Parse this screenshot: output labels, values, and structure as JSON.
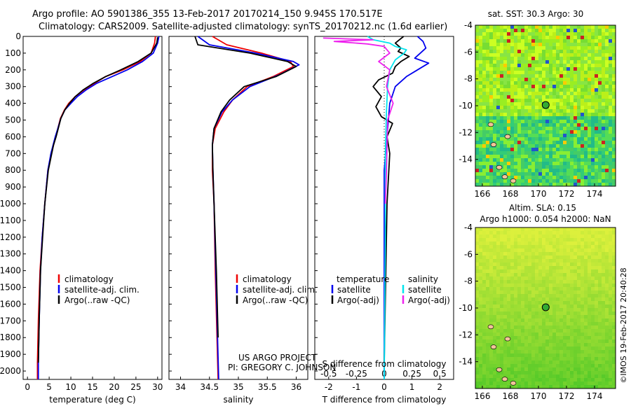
{
  "header": {
    "line1": "Argo profile: AO 5901386_355 13-Feb-2017 20170214_150 9.945S 170.517E",
    "line2": "Climatology: CARS2009. Satellite-adjusted climatology: synTS_20170212.nc (1.6d earlier)"
  },
  "colors": {
    "climatology": "#ee0000",
    "satellite": "#0000ee",
    "argo": "#000000",
    "sal_sat": "#00e5ee",
    "sal_argo": "#ee22ee"
  },
  "chart_data": [
    {
      "type": "line",
      "id": "temperature",
      "xlabel": "temperature (deg C)",
      "ylabel": "",
      "xlim": [
        -1,
        31
      ],
      "ylim": [
        2050,
        0
      ],
      "xticks": [
        "0",
        "5",
        "10",
        "15",
        "20",
        "25",
        "30"
      ],
      "xtick_values": [
        0,
        5,
        10,
        15,
        20,
        25,
        30
      ],
      "yticks": [
        "0",
        "100",
        "200",
        "300",
        "400",
        "500",
        "600",
        "700",
        "800",
        "900",
        "1000",
        "1100",
        "1200",
        "1300",
        "1400",
        "1500",
        "1600",
        "1700",
        "1800",
        "1900",
        "2000"
      ],
      "ytick_values": [
        0,
        100,
        200,
        300,
        400,
        500,
        600,
        700,
        800,
        900,
        1000,
        1100,
        1200,
        1300,
        1400,
        1500,
        1600,
        1700,
        1800,
        1900,
        2000
      ],
      "legend": [
        "climatology",
        "satellite-adj. clim.",
        "Argo(..raw -QC)"
      ],
      "legend_position": "bottom-right",
      "series": [
        {
          "name": "climatology",
          "color": "#ee0000",
          "x": [
            29.5,
            29.3,
            28.5,
            26,
            22,
            18,
            15.5,
            13,
            11,
            9.5,
            8.5,
            7.6,
            7,
            6.5,
            6,
            5.5,
            4.7,
            4,
            3.4,
            2.9,
            2.5,
            2.3,
            2.3
          ],
          "y": [
            0,
            40,
            100,
            150,
            200,
            240,
            280,
            320,
            360,
            400,
            440,
            490,
            550,
            600,
            650,
            700,
            800,
            1000,
            1200,
            1400,
            1700,
            1950,
            2050
          ]
        },
        {
          "name": "satellite-adj. clim.",
          "color": "#0000ee",
          "x": [
            30.3,
            30,
            29,
            26.5,
            23,
            19.5,
            16,
            13.5,
            11.5,
            10,
            8.6,
            7.7,
            7,
            6.4,
            5.9,
            5.4,
            4.7,
            4,
            3.4,
            3,
            2.7,
            2.5,
            2.5
          ],
          "y": [
            0,
            40,
            100,
            150,
            200,
            240,
            280,
            320,
            360,
            400,
            440,
            490,
            550,
            600,
            650,
            700,
            800,
            1000,
            1200,
            1400,
            1700,
            1950,
            2050
          ]
        },
        {
          "name": "Argo(..raw -QC)",
          "color": "#000000",
          "x": [
            30,
            29.8,
            28.5,
            25.5,
            21.5,
            18,
            15.2,
            12.8,
            11,
            9.7,
            8.6,
            7.7,
            7.1,
            6.6,
            6,
            5.6,
            4.8,
            4,
            3.5,
            3,
            2.7,
            2.5
          ],
          "y": [
            5,
            40,
            100,
            150,
            200,
            240,
            280,
            320,
            360,
            400,
            440,
            490,
            550,
            600,
            650,
            700,
            800,
            1000,
            1200,
            1400,
            1700,
            1950
          ]
        }
      ]
    },
    {
      "type": "line",
      "id": "salinity",
      "xlabel": "salinity",
      "xlim": [
        33.8,
        36.2
      ],
      "ylim": [
        2050,
        0
      ],
      "xticks": [
        "34",
        "34.5",
        "35",
        "35.5",
        "36"
      ],
      "xtick_values": [
        34,
        34.5,
        35,
        35.5,
        36
      ],
      "legend": [
        "climatology",
        "satellite-adj. clim.",
        "Argo(..raw -QC)"
      ],
      "legend_position": "bottom-right",
      "series": [
        {
          "name": "climatology",
          "color": "#ee0000",
          "x": [
            34.55,
            34.8,
            35.4,
            35.9,
            35.95,
            35.6,
            35.15,
            34.9,
            34.75,
            34.6,
            34.55,
            34.55,
            34.58,
            34.6,
            34.63,
            34.65
          ],
          "y": [
            0,
            50,
            100,
            150,
            180,
            240,
            300,
            380,
            450,
            550,
            650,
            800,
            1000,
            1400,
            1800,
            2050
          ]
        },
        {
          "name": "satellite-adj. clim.",
          "color": "#0000ee",
          "x": [
            34.3,
            34.5,
            35.3,
            35.95,
            36.05,
            35.7,
            35.2,
            34.9,
            34.72,
            34.58,
            34.55,
            34.56,
            34.58,
            34.61,
            34.64,
            34.66
          ],
          "y": [
            0,
            50,
            100,
            150,
            170,
            230,
            300,
            380,
            450,
            550,
            650,
            800,
            1000,
            1400,
            1800,
            2050
          ]
        },
        {
          "name": "Argo(..raw -QC)",
          "color": "#000000",
          "x": [
            34.25,
            34.3,
            35.2,
            35.85,
            36,
            35.65,
            35.1,
            34.85,
            34.7,
            34.58,
            34.55,
            34.56,
            34.58,
            34.62,
            34.65
          ],
          "y": [
            0,
            50,
            100,
            150,
            180,
            240,
            300,
            380,
            450,
            550,
            650,
            800,
            1000,
            1400,
            1800
          ]
        }
      ],
      "annotation": [
        "US ARGO PROJECT",
        "PI: GREGORY C. JOHNSON"
      ]
    },
    {
      "type": "line",
      "id": "difference",
      "xlabel_top": "S difference from climatology",
      "xlabel": "T difference from climatology",
      "xlim": [
        -2.5,
        2.5
      ],
      "ylim": [
        2050,
        0
      ],
      "xticks": [
        "-2",
        "-1",
        "0",
        "1",
        "2"
      ],
      "xtick_values": [
        -2,
        -1,
        0,
        1,
        2
      ],
      "sticks": [
        "-0.5",
        "-0.25",
        "0",
        "0.25",
        "0.5"
      ],
      "stick_values": [
        -0.5,
        -0.25,
        0,
        0.25,
        0.5
      ],
      "legend": [
        "temperature",
        "satellite",
        "Argo(-adj)",
        "salinity",
        "satellite",
        "Argo(-adj)"
      ],
      "legend_position": "bottom",
      "series": [
        {
          "name": "temperature satellite",
          "color": "#0000ee",
          "scale": "T",
          "x": [
            1.2,
            1.4,
            1.5,
            1.3,
            1.1,
            1.6,
            1.2,
            0.8,
            0.4,
            0.2,
            0.1,
            0,
            0,
            0,
            0
          ],
          "y": [
            0,
            30,
            70,
            100,
            130,
            160,
            200,
            240,
            300,
            400,
            600,
            800,
            1200,
            1600,
            2050
          ]
        },
        {
          "name": "temperature Argo(-adj)",
          "color": "#000000",
          "scale": "T",
          "x": [
            0.7,
            0.4,
            0.6,
            0.5,
            0.9,
            0.6,
            0.4,
            0.3,
            -0.2,
            -0.4,
            -0.1,
            -0.3,
            -0.1,
            0.3,
            0.1,
            0.2,
            0.1,
            0
          ],
          "y": [
            0,
            40,
            70,
            90,
            120,
            150,
            180,
            220,
            260,
            300,
            360,
            420,
            480,
            520,
            600,
            700,
            1000,
            1950
          ]
        },
        {
          "name": "salinity satellite",
          "color": "#00e5ee",
          "scale": "S",
          "x": [
            -0.15,
            -0.1,
            0.05,
            0.1,
            0.2,
            0.18,
            0.1,
            0.05,
            0.03,
            0.02,
            0.01,
            0.01,
            0
          ],
          "y": [
            0,
            20,
            40,
            60,
            80,
            100,
            140,
            200,
            300,
            450,
            700,
            1200,
            2050
          ]
        },
        {
          "name": "salinity Argo(-adj)",
          "color": "#ee22ee",
          "scale": "S",
          "x": [
            -0.55,
            -0.1,
            -0.45,
            -0.15,
            0,
            0.05,
            -0.05,
            0.05,
            0.02,
            0.08,
            0.03,
            0.02,
            0.01
          ],
          "y": [
            10,
            20,
            30,
            45,
            60,
            100,
            150,
            200,
            300,
            400,
            500,
            800,
            1000
          ]
        }
      ]
    },
    {
      "type": "heatmap",
      "id": "sst_map",
      "title": "sat. SST: 30.3 Argo: 30",
      "xlim": [
        165.5,
        175.5
      ],
      "ylim": [
        -16,
        -4
      ],
      "xticks": [
        "166",
        "168",
        "170",
        "172",
        "174"
      ],
      "xtick_values": [
        166,
        168,
        170,
        172,
        174
      ],
      "yticks": [
        "-4",
        "-6",
        "-8",
        "-10",
        "-12",
        "-14"
      ],
      "ytick_values": [
        -4,
        -6,
        -8,
        -10,
        -12,
        -14
      ],
      "marker": {
        "lon": 170.517,
        "lat": -9.945
      }
    },
    {
      "type": "heatmap",
      "id": "sla_map",
      "title_line1": "Altim. SLA: 0.15",
      "title_line2": "Argo h1000: 0.054 h2000: NaN",
      "xlim": [
        165.5,
        175.5
      ],
      "ylim": [
        -16,
        -4
      ],
      "xticks": [
        "166",
        "168",
        "170",
        "172",
        "174"
      ],
      "xtick_values": [
        166,
        168,
        170,
        172,
        174
      ],
      "yticks": [
        "-4",
        "-6",
        "-8",
        "-10",
        "-12",
        "-14"
      ],
      "ytick_values": [
        -4,
        -6,
        -8,
        -10,
        -12,
        -14
      ],
      "marker": {
        "lon": 170.517,
        "lat": -9.945
      }
    }
  ],
  "footer": {
    "credit": "©IMOS 19-Feb-2017 20:40:28"
  }
}
